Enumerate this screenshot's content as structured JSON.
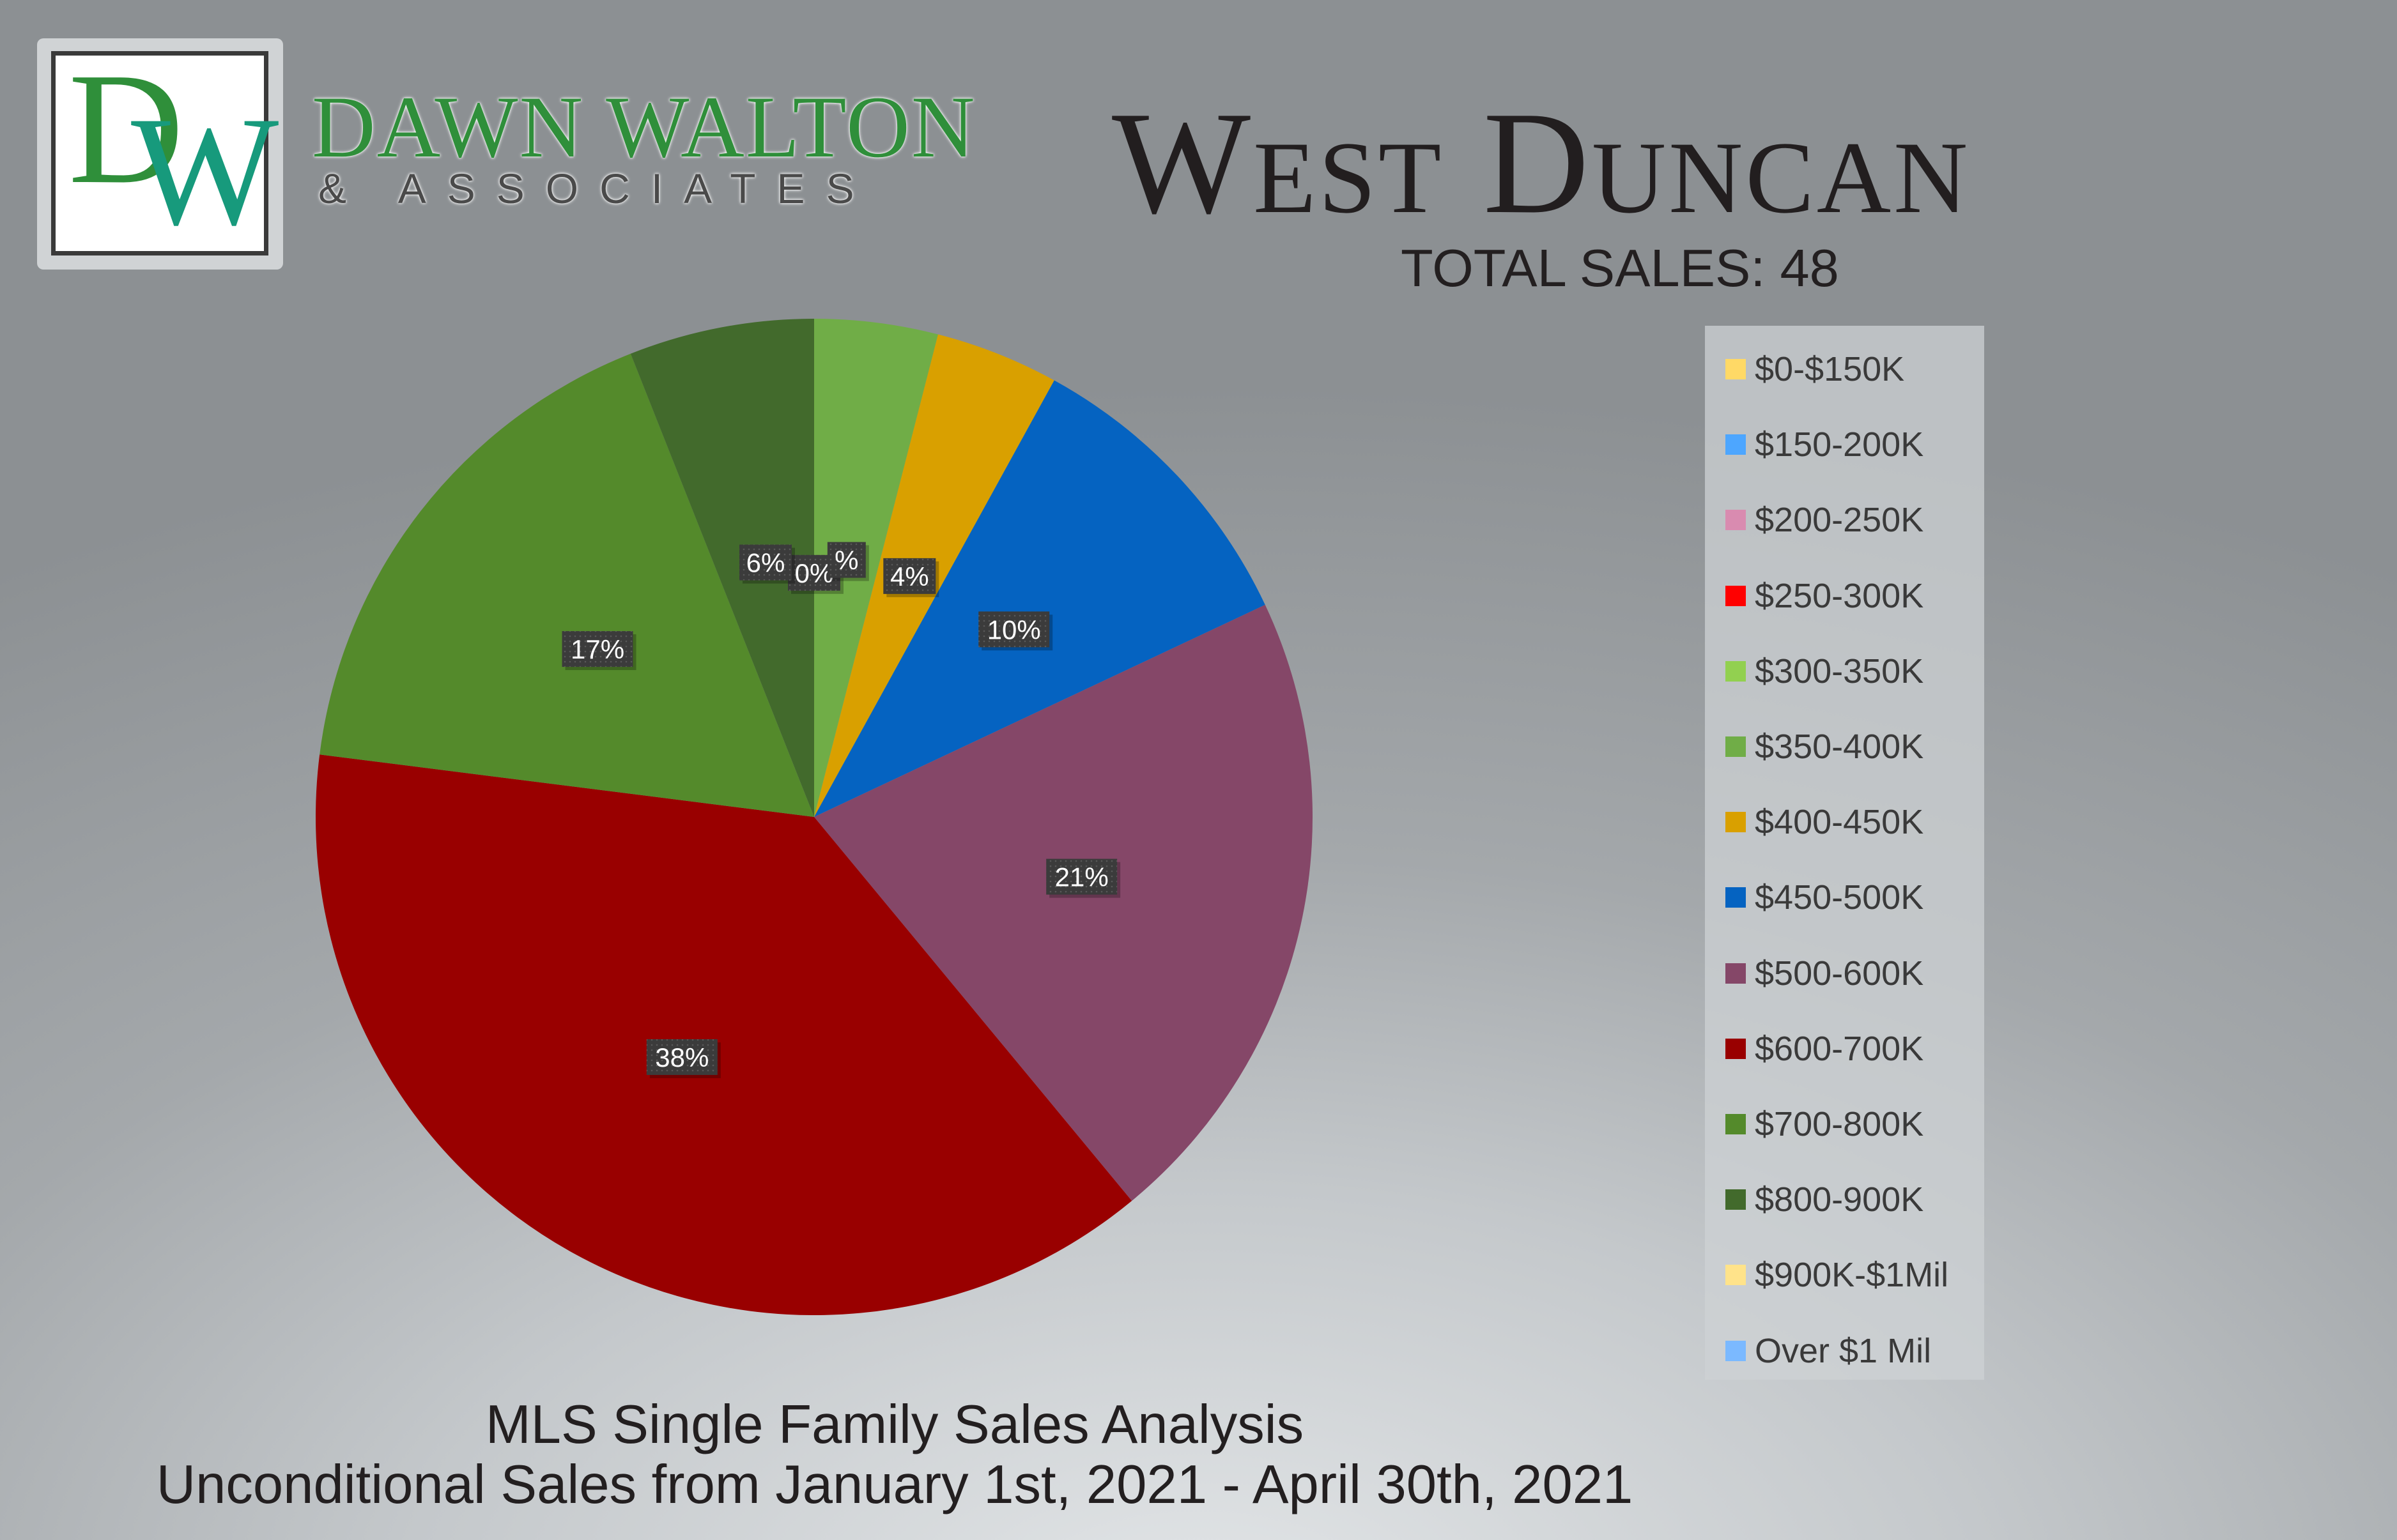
{
  "brand": {
    "logo_letters": "DW",
    "name": "DAWN WALTON",
    "subtitle": "& ASSOCIATES"
  },
  "header": {
    "title": "West Duncan",
    "total_sales": "TOTAL SALES: 48"
  },
  "footer": {
    "line1": "MLS Single Family Sales Analysis",
    "line2": "Unconditional Sales from January 1st, 2021 - April 30th, 2021"
  },
  "chart_data": {
    "type": "pie",
    "title": "West Duncan",
    "legend_position": "right",
    "slices": [
      {
        "label": "$0-$150K",
        "value": 0,
        "display": "",
        "color": "#ffd966"
      },
      {
        "label": "$150-200K",
        "value": 0,
        "display": "",
        "color": "#4da6ff"
      },
      {
        "label": "$200-250K",
        "value": 0,
        "display": "",
        "color": "#d98bb0"
      },
      {
        "label": "$250-300K",
        "value": 0,
        "display": "",
        "color": "#ff0000"
      },
      {
        "label": "$300-350K",
        "value": 0,
        "display": "0%",
        "color": "#92d050"
      },
      {
        "label": "$350-400K",
        "value": 4,
        "display": "%",
        "color": "#70ad47"
      },
      {
        "label": "$400-450K",
        "value": 4,
        "display": "4%",
        "color": "#d9a000"
      },
      {
        "label": "$450-500K",
        "value": 10,
        "display": "10%",
        "color": "#0563c1"
      },
      {
        "label": "$500-600K",
        "value": 21,
        "display": "21%",
        "color": "#854768"
      },
      {
        "label": "$600-700K",
        "value": 38,
        "display": "38%",
        "color": "#990000"
      },
      {
        "label": "$700-800K",
        "value": 17,
        "display": "17%",
        "color": "#548a2b"
      },
      {
        "label": "$800-900K",
        "value": 6,
        "display": "6%",
        "color": "#426a2c"
      },
      {
        "label": "$900K-$1Mil",
        "value": 0,
        "display": "",
        "color": "#ffe38a"
      },
      {
        "label": "Over $1 Mil",
        "value": 0,
        "display": "",
        "color": "#7bb9ff"
      }
    ]
  }
}
